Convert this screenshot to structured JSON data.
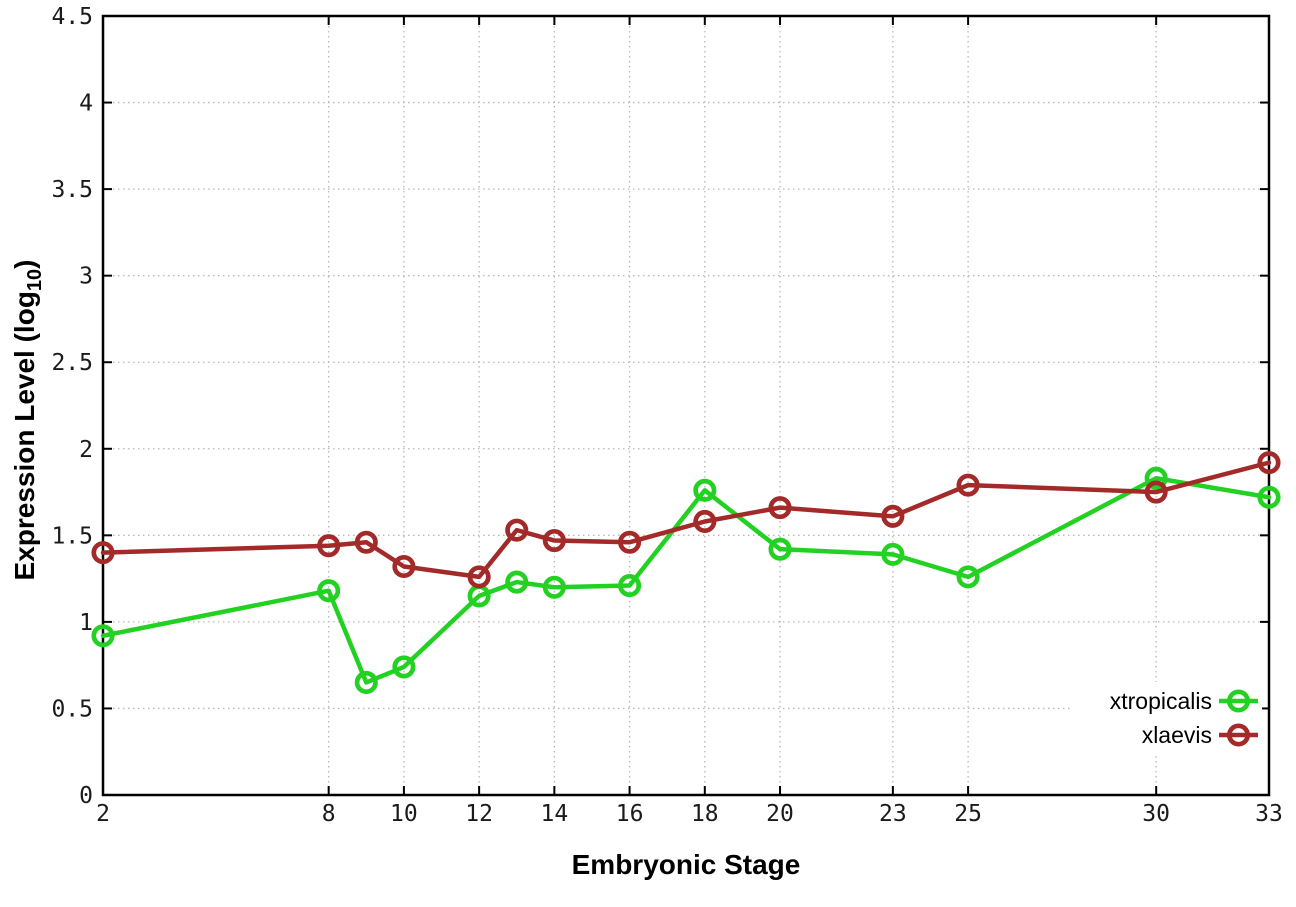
{
  "chart_data": {
    "type": "line",
    "title": "",
    "xlabel": "Embryonic Stage",
    "ylabel_main": "Expression Level (log",
    "ylabel_sub": "10",
    "ylabel_end": ")",
    "x": [
      2,
      8,
      9,
      10,
      12,
      13,
      14,
      16,
      18,
      20,
      23,
      25,
      30,
      33
    ],
    "series": [
      {
        "name": "xtropicalis",
        "color": "#22d122",
        "values": [
          0.92,
          1.18,
          0.65,
          0.74,
          1.15,
          1.23,
          1.2,
          1.21,
          1.76,
          1.42,
          1.39,
          1.26,
          1.83,
          1.72
        ]
      },
      {
        "name": "xlaevis",
        "color": "#a32a29",
        "values": [
          1.4,
          1.44,
          1.46,
          1.32,
          1.26,
          1.53,
          1.47,
          1.46,
          1.58,
          1.66,
          1.61,
          1.79,
          1.75,
          1.92
        ]
      }
    ],
    "xlim": [
      2,
      33
    ],
    "ylim": [
      0,
      4.5
    ],
    "xticks": [
      2,
      8,
      10,
      12,
      14,
      16,
      18,
      20,
      23,
      25,
      30,
      33
    ],
    "xtick_labels": [
      "2",
      "8",
      "10",
      "12",
      "14",
      "16",
      "18",
      "20",
      "23",
      "25",
      "30",
      "33"
    ],
    "yticks": [
      0,
      0.5,
      1,
      1.5,
      2,
      2.5,
      3,
      3.5,
      4,
      4.5
    ],
    "ytick_labels": [
      "0",
      "0.5",
      "1",
      "1.5",
      "2",
      "2.5",
      "3",
      "3.5",
      "4",
      "4.5"
    ],
    "grid": true,
    "legend_position": "bottom-right",
    "legend": [
      "xtropicalis",
      "xlaevis"
    ]
  },
  "colors": {
    "background": "#ffffff",
    "grid": "#b8b8b8",
    "axis": "#000000",
    "tick_text": "#1a1a1a"
  }
}
